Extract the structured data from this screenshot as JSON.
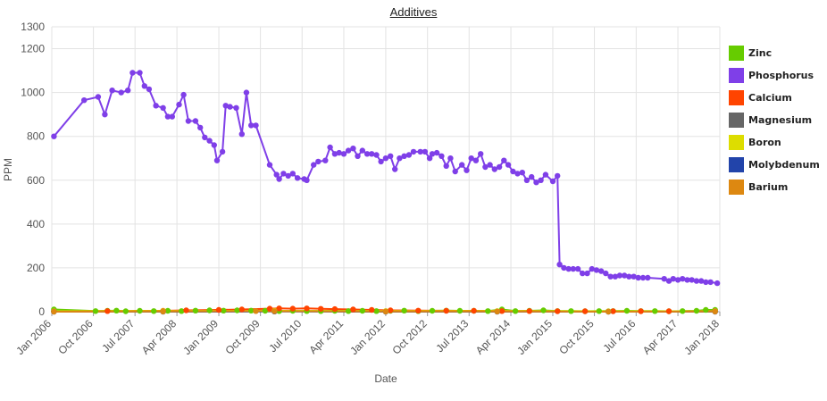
{
  "chart_data": {
    "type": "line",
    "title": "Additives",
    "xlabel": "Date",
    "ylabel": "PPM",
    "ylim": [
      0,
      1300
    ],
    "yticks": [
      0,
      200,
      400,
      600,
      800,
      1000,
      1200,
      1300
    ],
    "xlim": [
      "2006-01-01",
      "2018-01-01"
    ],
    "xticks": [
      {
        "date": "2006-01-01",
        "label": "Jan 2006"
      },
      {
        "date": "2006-10-01",
        "label": "Oct 2006"
      },
      {
        "date": "2007-07-01",
        "label": "Jul 2007"
      },
      {
        "date": "2008-04-01",
        "label": "Apr 2008"
      },
      {
        "date": "2009-01-01",
        "label": "Jan 2009"
      },
      {
        "date": "2009-10-01",
        "label": "Oct 2009"
      },
      {
        "date": "2010-07-01",
        "label": "Jul 2010"
      },
      {
        "date": "2011-04-01",
        "label": "Apr 2011"
      },
      {
        "date": "2012-01-01",
        "label": "Jan 2012"
      },
      {
        "date": "2012-10-01",
        "label": "Oct 2012"
      },
      {
        "date": "2013-07-01",
        "label": "Jul 2013"
      },
      {
        "date": "2014-04-01",
        "label": "Apr 2014"
      },
      {
        "date": "2015-01-01",
        "label": "Jan 2015"
      },
      {
        "date": "2015-10-01",
        "label": "Oct 2015"
      },
      {
        "date": "2016-07-01",
        "label": "Jul 2016"
      },
      {
        "date": "2017-04-01",
        "label": "Apr 2017"
      },
      {
        "date": "2018-01-01",
        "label": "Jan 2018"
      }
    ],
    "grid": true,
    "legend_position": "right",
    "series": [
      {
        "name": "Zinc",
        "color": "#66cc00",
        "points": [
          [
            "2006-01-15",
            10
          ],
          [
            "2006-10-15",
            3
          ],
          [
            "2007-01-01",
            4
          ],
          [
            "2007-03-01",
            5
          ],
          [
            "2007-05-01",
            2
          ],
          [
            "2007-08-01",
            4
          ],
          [
            "2007-11-01",
            3
          ],
          [
            "2008-02-01",
            4
          ],
          [
            "2008-05-01",
            3
          ],
          [
            "2008-08-01",
            5
          ],
          [
            "2008-11-01",
            6
          ],
          [
            "2009-02-01",
            5
          ],
          [
            "2009-05-01",
            6
          ],
          [
            "2009-08-01",
            5
          ],
          [
            "2009-11-01",
            4
          ],
          [
            "2010-02-01",
            3
          ],
          [
            "2010-05-01",
            4
          ],
          [
            "2010-08-01",
            3
          ],
          [
            "2010-11-01",
            3
          ],
          [
            "2011-02-01",
            4
          ],
          [
            "2011-05-01",
            3
          ],
          [
            "2011-08-01",
            4
          ],
          [
            "2011-11-01",
            3
          ],
          [
            "2012-02-01",
            4
          ],
          [
            "2012-05-01",
            5
          ],
          [
            "2012-08-01",
            3
          ],
          [
            "2012-11-01",
            4
          ],
          [
            "2013-02-01",
            5
          ],
          [
            "2013-05-01",
            4
          ],
          [
            "2013-08-01",
            4
          ],
          [
            "2013-11-01",
            3
          ],
          [
            "2014-02-01",
            10
          ],
          [
            "2014-05-01",
            3
          ],
          [
            "2014-08-01",
            4
          ],
          [
            "2014-11-01",
            6
          ],
          [
            "2015-02-01",
            3
          ],
          [
            "2015-05-01",
            3
          ],
          [
            "2015-08-01",
            2
          ],
          [
            "2015-11-01",
            3
          ],
          [
            "2016-02-01",
            3
          ],
          [
            "2016-05-01",
            4
          ],
          [
            "2016-08-01",
            3
          ],
          [
            "2016-11-01",
            3
          ],
          [
            "2017-02-01",
            2
          ],
          [
            "2017-05-01",
            3
          ],
          [
            "2017-08-01",
            4
          ],
          [
            "2017-10-01",
            8
          ],
          [
            "2017-12-01",
            8
          ]
        ]
      },
      {
        "name": "Phosphorus",
        "color": "#7f3fe8",
        "points": [
          [
            "2006-01-15",
            800
          ],
          [
            "2006-08-01",
            965
          ],
          [
            "2006-11-01",
            980
          ],
          [
            "2006-12-15",
            900
          ],
          [
            "2007-02-01",
            1010
          ],
          [
            "2007-04-01",
            1000
          ],
          [
            "2007-05-15",
            1010
          ],
          [
            "2007-06-15",
            1090
          ],
          [
            "2007-08-01",
            1090
          ],
          [
            "2007-09-01",
            1030
          ],
          [
            "2007-10-01",
            1015
          ],
          [
            "2007-11-15",
            940
          ],
          [
            "2008-01-01",
            930
          ],
          [
            "2008-02-01",
            890
          ],
          [
            "2008-03-01",
            890
          ],
          [
            "2008-04-15",
            945
          ],
          [
            "2008-05-15",
            990
          ],
          [
            "2008-06-15",
            870
          ],
          [
            "2008-08-01",
            870
          ],
          [
            "2008-09-01",
            840
          ],
          [
            "2008-10-01",
            795
          ],
          [
            "2008-11-01",
            780
          ],
          [
            "2008-12-01",
            760
          ],
          [
            "2008-12-20",
            690
          ],
          [
            "2009-01-25",
            730
          ],
          [
            "2009-02-15",
            940
          ],
          [
            "2009-03-15",
            935
          ],
          [
            "2009-04-25",
            930
          ],
          [
            "2009-06-01",
            810
          ],
          [
            "2009-07-01",
            1000
          ],
          [
            "2009-08-01",
            850
          ],
          [
            "2009-09-01",
            850
          ],
          [
            "2009-12-01",
            670
          ],
          [
            "2010-01-15",
            625
          ],
          [
            "2010-02-01",
            605
          ],
          [
            "2010-03-01",
            630
          ],
          [
            "2010-04-01",
            620
          ],
          [
            "2010-05-01",
            630
          ],
          [
            "2010-06-01",
            610
          ],
          [
            "2010-07-15",
            605
          ],
          [
            "2010-08-01",
            600
          ],
          [
            "2010-09-15",
            670
          ],
          [
            "2010-10-15",
            685
          ],
          [
            "2010-12-01",
            690
          ],
          [
            "2011-01-01",
            750
          ],
          [
            "2011-02-01",
            720
          ],
          [
            "2011-03-01",
            725
          ],
          [
            "2011-04-01",
            720
          ],
          [
            "2011-05-01",
            735
          ],
          [
            "2011-06-01",
            745
          ],
          [
            "2011-07-01",
            710
          ],
          [
            "2011-08-01",
            735
          ],
          [
            "2011-09-01",
            720
          ],
          [
            "2011-10-01",
            720
          ],
          [
            "2011-11-01",
            715
          ],
          [
            "2011-12-01",
            685
          ],
          [
            "2012-01-01",
            700
          ],
          [
            "2012-02-01",
            710
          ],
          [
            "2012-03-01",
            650
          ],
          [
            "2012-04-01",
            700
          ],
          [
            "2012-05-01",
            710
          ],
          [
            "2012-06-01",
            715
          ],
          [
            "2012-07-01",
            730
          ],
          [
            "2012-08-15",
            730
          ],
          [
            "2012-09-15",
            730
          ],
          [
            "2012-10-15",
            700
          ],
          [
            "2012-11-01",
            720
          ],
          [
            "2012-12-01",
            725
          ],
          [
            "2013-01-01",
            710
          ],
          [
            "2013-02-01",
            665
          ],
          [
            "2013-03-01",
            700
          ],
          [
            "2013-04-01",
            640
          ],
          [
            "2013-05-15",
            670
          ],
          [
            "2013-06-15",
            645
          ],
          [
            "2013-07-15",
            700
          ],
          [
            "2013-08-15",
            690
          ],
          [
            "2013-09-15",
            720
          ],
          [
            "2013-10-15",
            660
          ],
          [
            "2013-11-15",
            670
          ],
          [
            "2013-12-15",
            650
          ],
          [
            "2014-01-15",
            660
          ],
          [
            "2014-02-15",
            690
          ],
          [
            "2014-03-15",
            670
          ],
          [
            "2014-04-15",
            640
          ],
          [
            "2014-05-15",
            630
          ],
          [
            "2014-06-15",
            635
          ],
          [
            "2014-07-15",
            600
          ],
          [
            "2014-08-15",
            615
          ],
          [
            "2014-09-15",
            590
          ],
          [
            "2014-10-15",
            600
          ],
          [
            "2014-11-15",
            625
          ],
          [
            "2015-01-01",
            595
          ],
          [
            "2015-02-01",
            620
          ],
          [
            "2015-02-15",
            215
          ],
          [
            "2015-03-15",
            200
          ],
          [
            "2015-04-15",
            195
          ],
          [
            "2015-05-15",
            195
          ],
          [
            "2015-06-15",
            195
          ],
          [
            "2015-07-15",
            175
          ],
          [
            "2015-08-15",
            175
          ],
          [
            "2015-09-15",
            195
          ],
          [
            "2015-10-15",
            190
          ],
          [
            "2015-11-15",
            185
          ],
          [
            "2015-12-15",
            175
          ],
          [
            "2016-01-15",
            160
          ],
          [
            "2016-02-15",
            160
          ],
          [
            "2016-03-15",
            165
          ],
          [
            "2016-04-15",
            165
          ],
          [
            "2016-05-15",
            160
          ],
          [
            "2016-06-15",
            160
          ],
          [
            "2016-07-15",
            155
          ],
          [
            "2016-08-15",
            155
          ],
          [
            "2016-09-15",
            155
          ],
          [
            "2017-01-01",
            150
          ],
          [
            "2017-02-01",
            140
          ],
          [
            "2017-03-01",
            150
          ],
          [
            "2017-04-01",
            145
          ],
          [
            "2017-05-01",
            150
          ],
          [
            "2017-06-01",
            145
          ],
          [
            "2017-07-01",
            145
          ],
          [
            "2017-08-01",
            140
          ],
          [
            "2017-09-01",
            140
          ],
          [
            "2017-10-01",
            135
          ],
          [
            "2017-11-01",
            135
          ],
          [
            "2017-12-15",
            130
          ]
        ]
      },
      {
        "name": "Calcium",
        "color": "#ff4400",
        "points": [
          [
            "2006-01-15",
            2
          ],
          [
            "2007-01-01",
            3
          ],
          [
            "2008-01-01",
            4
          ],
          [
            "2008-06-01",
            6
          ],
          [
            "2009-01-01",
            8
          ],
          [
            "2009-06-01",
            10
          ],
          [
            "2009-12-01",
            14
          ],
          [
            "2010-02-01",
            15
          ],
          [
            "2010-05-01",
            14
          ],
          [
            "2010-08-01",
            15
          ],
          [
            "2010-11-01",
            13
          ],
          [
            "2011-02-01",
            12
          ],
          [
            "2011-06-01",
            10
          ],
          [
            "2011-10-01",
            8
          ],
          [
            "2012-02-01",
            6
          ],
          [
            "2012-08-01",
            5
          ],
          [
            "2013-02-01",
            4
          ],
          [
            "2013-08-01",
            4
          ],
          [
            "2014-02-01",
            3
          ],
          [
            "2014-08-01",
            3
          ],
          [
            "2015-02-01",
            2
          ],
          [
            "2015-08-01",
            2
          ],
          [
            "2016-02-01",
            2
          ],
          [
            "2016-08-01",
            2
          ],
          [
            "2017-02-01",
            2
          ],
          [
            "2017-12-01",
            3
          ]
        ]
      },
      {
        "name": "Magnesium",
        "color": "#666666",
        "points": [
          [
            "2006-01-15",
            1
          ],
          [
            "2008-01-01",
            1
          ],
          [
            "2010-01-01",
            2
          ],
          [
            "2012-01-01",
            1
          ],
          [
            "2014-01-01",
            1
          ],
          [
            "2016-01-01",
            1
          ],
          [
            "2017-12-01",
            1
          ]
        ]
      },
      {
        "name": "Boron",
        "color": "#dddd00",
        "points": [
          [
            "2006-01-15",
            2
          ],
          [
            "2008-01-01",
            3
          ],
          [
            "2010-01-01",
            4
          ],
          [
            "2012-01-01",
            3
          ],
          [
            "2014-01-01",
            3
          ],
          [
            "2016-01-01",
            2
          ],
          [
            "2017-12-01",
            2
          ]
        ]
      },
      {
        "name": "Molybdenum",
        "color": "#2244aa",
        "points": [
          [
            "2006-01-15",
            0
          ],
          [
            "2008-01-01",
            0
          ],
          [
            "2010-01-01",
            1
          ],
          [
            "2012-01-01",
            0
          ],
          [
            "2014-01-01",
            0
          ],
          [
            "2016-01-01",
            0
          ],
          [
            "2017-12-01",
            0
          ]
        ]
      },
      {
        "name": "Barium",
        "color": "#dd8811",
        "points": [
          [
            "2006-01-15",
            0
          ],
          [
            "2008-01-01",
            1
          ],
          [
            "2009-09-01",
            3
          ],
          [
            "2010-01-01",
            2
          ],
          [
            "2012-01-01",
            1
          ],
          [
            "2014-01-01",
            1
          ],
          [
            "2016-01-01",
            0
          ],
          [
            "2017-12-01",
            1
          ]
        ]
      }
    ]
  }
}
